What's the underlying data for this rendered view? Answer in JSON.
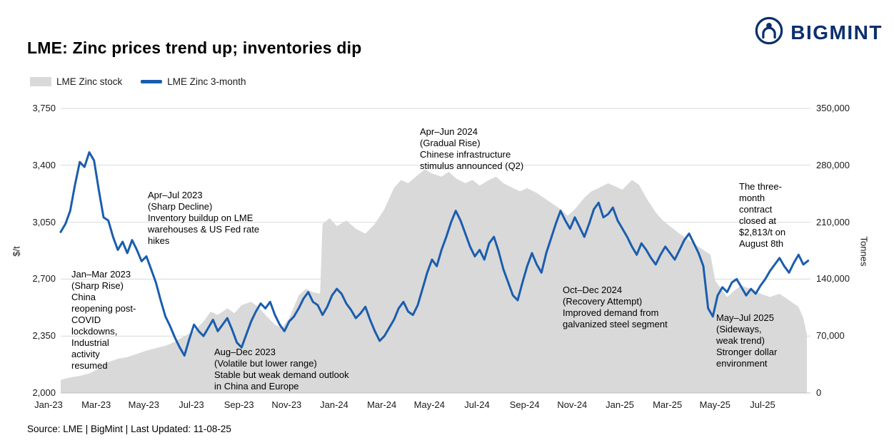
{
  "brand": {
    "name": "BIGMINT",
    "color": "#0c2f6e"
  },
  "title": "LME: Zinc prices trend up; inventories dip",
  "legend": [
    {
      "label": "LME Zinc stock",
      "type": "area",
      "color": "#d9d9d9"
    },
    {
      "label": "LME Zinc 3-month",
      "type": "line",
      "color": "#1a5dad"
    }
  ],
  "source": "Source: LME | BigMint | Last Updated: 11-08-25",
  "chart_data": {
    "type": "combo",
    "title": "LME: Zinc prices trend up; inventories dip",
    "grid_color": "#d9d9d9",
    "axis_line_color": "#bfbfbf",
    "left_axis": {
      "label": "$/t",
      "min": 2000,
      "max": 3750,
      "tick_labels": [
        "2,000",
        "2,350",
        "2,700",
        "3,050",
        "3,400",
        "3,750"
      ]
    },
    "right_axis": {
      "label": "Tonnes",
      "min": 0,
      "max": 350000,
      "tick_labels": [
        "0",
        "70,000",
        "140,000",
        "210,000",
        "280,000",
        "350,000"
      ]
    },
    "x_axis": {
      "tick_labels": [
        "Jan-23",
        "Mar-23",
        "May-23",
        "Jul-23",
        "Sep-23",
        "Nov-23",
        "Jan-24",
        "Mar-24",
        "May-24",
        "Jul-24",
        "Sep-24",
        "Nov-24",
        "Jan-25",
        "Mar-25",
        "May-25",
        "Jul-25"
      ],
      "tick_positions_months": [
        0,
        2,
        4,
        6,
        8,
        10,
        12,
        14,
        16,
        18,
        20,
        22,
        24,
        26,
        28,
        30
      ],
      "months_total": 31.5,
      "start": "Jan-2023",
      "end": "Aug-2025"
    },
    "series": [
      {
        "name": "LME Zinc stock",
        "type": "area",
        "axis": "right",
        "unit": "tonnes",
        "color": "#d9d9d9",
        "points": [
          [
            0.0,
            16000
          ],
          [
            0.4,
            19000
          ],
          [
            0.8,
            21000
          ],
          [
            1.2,
            24000
          ],
          [
            1.6,
            30000
          ],
          [
            2.0,
            38000
          ],
          [
            2.4,
            42000
          ],
          [
            2.8,
            44000
          ],
          [
            3.2,
            48000
          ],
          [
            3.6,
            52000
          ],
          [
            4.0,
            55000
          ],
          [
            4.4,
            58000
          ],
          [
            4.8,
            63000
          ],
          [
            5.2,
            70000
          ],
          [
            5.6,
            76000
          ],
          [
            6.0,
            88000
          ],
          [
            6.3,
            100000
          ],
          [
            6.6,
            96000
          ],
          [
            7.0,
            104000
          ],
          [
            7.3,
            98000
          ],
          [
            7.6,
            108000
          ],
          [
            8.0,
            112000
          ],
          [
            8.3,
            106000
          ],
          [
            8.6,
            96000
          ],
          [
            9.0,
            84000
          ],
          [
            9.3,
            80000
          ],
          [
            9.6,
            92000
          ],
          [
            10.0,
            120000
          ],
          [
            10.3,
            128000
          ],
          [
            10.6,
            124000
          ],
          [
            10.9,
            122000
          ],
          [
            11.0,
            208000
          ],
          [
            11.3,
            215000
          ],
          [
            11.6,
            205000
          ],
          [
            12.0,
            212000
          ],
          [
            12.4,
            202000
          ],
          [
            12.8,
            196000
          ],
          [
            13.2,
            208000
          ],
          [
            13.6,
            226000
          ],
          [
            14.0,
            252000
          ],
          [
            14.3,
            262000
          ],
          [
            14.6,
            258000
          ],
          [
            15.0,
            268000
          ],
          [
            15.3,
            275000
          ],
          [
            15.6,
            270000
          ],
          [
            16.0,
            266000
          ],
          [
            16.3,
            272000
          ],
          [
            16.6,
            264000
          ],
          [
            17.0,
            258000
          ],
          [
            17.3,
            262000
          ],
          [
            17.6,
            255000
          ],
          [
            18.0,
            262000
          ],
          [
            18.3,
            266000
          ],
          [
            18.6,
            258000
          ],
          [
            19.0,
            252000
          ],
          [
            19.3,
            248000
          ],
          [
            19.6,
            252000
          ],
          [
            20.0,
            246000
          ],
          [
            20.3,
            240000
          ],
          [
            20.6,
            234000
          ],
          [
            21.0,
            226000
          ],
          [
            21.3,
            218000
          ],
          [
            21.6,
            226000
          ],
          [
            22.0,
            240000
          ],
          [
            22.3,
            248000
          ],
          [
            22.6,
            252000
          ],
          [
            23.0,
            258000
          ],
          [
            23.3,
            254000
          ],
          [
            23.6,
            250000
          ],
          [
            24.0,
            262000
          ],
          [
            24.3,
            256000
          ],
          [
            24.6,
            240000
          ],
          [
            25.0,
            222000
          ],
          [
            25.3,
            212000
          ],
          [
            25.6,
            205000
          ],
          [
            26.0,
            196000
          ],
          [
            26.3,
            190000
          ],
          [
            26.6,
            184000
          ],
          [
            27.0,
            176000
          ],
          [
            27.3,
            170000
          ],
          [
            27.5,
            138000
          ],
          [
            27.8,
            126000
          ],
          [
            28.0,
            118000
          ],
          [
            28.3,
            126000
          ],
          [
            28.6,
            132000
          ],
          [
            29.0,
            128000
          ],
          [
            29.4,
            122000
          ],
          [
            29.8,
            118000
          ],
          [
            30.2,
            122000
          ],
          [
            30.6,
            114000
          ],
          [
            31.0,
            106000
          ],
          [
            31.2,
            92000
          ],
          [
            31.35,
            72000
          ]
        ]
      },
      {
        "name": "LME Zinc 3-month",
        "type": "line",
        "axis": "left",
        "unit": "$/t",
        "color": "#1a5dad",
        "x_step_months": 0.2,
        "values": [
          2990,
          3040,
          3120,
          3280,
          3420,
          3390,
          3480,
          3430,
          3250,
          3080,
          3060,
          2960,
          2880,
          2930,
          2860,
          2940,
          2880,
          2810,
          2840,
          2760,
          2680,
          2570,
          2470,
          2410,
          2340,
          2280,
          2230,
          2330,
          2420,
          2380,
          2350,
          2400,
          2450,
          2380,
          2420,
          2460,
          2390,
          2310,
          2280,
          2360,
          2440,
          2500,
          2550,
          2520,
          2560,
          2480,
          2420,
          2380,
          2440,
          2470,
          2520,
          2580,
          2620,
          2560,
          2540,
          2480,
          2530,
          2600,
          2640,
          2610,
          2550,
          2510,
          2460,
          2490,
          2530,
          2450,
          2380,
          2320,
          2350,
          2400,
          2450,
          2520,
          2560,
          2500,
          2480,
          2540,
          2640,
          2740,
          2820,
          2780,
          2880,
          2960,
          3050,
          3120,
          3060,
          2980,
          2900,
          2840,
          2880,
          2820,
          2920,
          2960,
          2870,
          2760,
          2680,
          2600,
          2570,
          2680,
          2780,
          2860,
          2790,
          2740,
          2860,
          2950,
          3040,
          3120,
          3060,
          3010,
          3080,
          3020,
          2960,
          3040,
          3130,
          3170,
          3080,
          3100,
          3140,
          3060,
          3010,
          2960,
          2900,
          2850,
          2920,
          2880,
          2830,
          2790,
          2850,
          2900,
          2860,
          2820,
          2880,
          2940,
          2980,
          2920,
          2860,
          2780,
          2520,
          2470,
          2600,
          2650,
          2620,
          2680,
          2700,
          2650,
          2600,
          2640,
          2610,
          2660,
          2700,
          2750,
          2790,
          2830,
          2780,
          2740,
          2800,
          2850,
          2790,
          2813
        ]
      }
    ],
    "annotations": [
      {
        "id": "jan-mar-2023",
        "text": "Jan–Mar 2023\n(Sharp Rise)\nChina\nreopening post-\nCOVID\nlockdowns,\nIndustrial\nactivity\nresumed"
      },
      {
        "id": "apr-jul-2023",
        "text": "Apr–Jul 2023\n(Sharp Decline)\nInventory buildup on LME\nwarehouses & US Fed rate\nhikes"
      },
      {
        "id": "aug-dec-2023",
        "text": "Aug–Dec 2023\n(Volatile but lower range)\nStable but weak demand outlook\nin China and Europe"
      },
      {
        "id": "apr-jun-2024",
        "text": "Apr–Jun 2024\n(Gradual Rise)\nChinese infrastructure\nstimulus announced (Q2)"
      },
      {
        "id": "oct-dec-2024",
        "text": "Oct–Dec 2024\n(Recovery Attempt)\nImproved demand from\ngalvanized steel segment"
      },
      {
        "id": "may-jul-2025",
        "text": "May–Jul 2025\n(Sideways,\nweak trend)\nStronger dollar\nenvironment"
      },
      {
        "id": "aug-2025-close",
        "text": "The three-\nmonth\ncontract\nclosed at\n$2,813/t on\nAugust 8th"
      }
    ]
  }
}
